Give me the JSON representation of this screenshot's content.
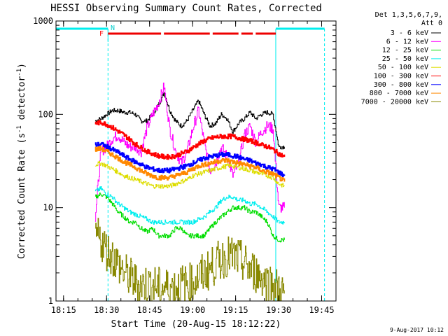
{
  "chart_data": {
    "type": "line",
    "title": "HESSI Observing Summary Count Rates, Corrected",
    "xlabel": "Start Time (20-Aug-15 18:12:22)",
    "ylabel": "Corrected Count Rate (s",
    "ylabel_sup1": "-1",
    "ylabel_mid": " detector",
    "ylabel_sup2": "-1",
    "ylabel_end": ")",
    "yscale": "log",
    "ylim": [
      1,
      1000
    ],
    "y_ticks": [
      1,
      10,
      100,
      1000
    ],
    "y_tick_labels": [
      "1",
      "10",
      "100",
      "1000"
    ],
    "xlim": [
      "18:12:22",
      "19:50:00"
    ],
    "x_ticks": [
      "18:15",
      "18:30",
      "18:45",
      "19:00",
      "19:15",
      "19:30",
      "19:45"
    ],
    "legend": {
      "placement": "right",
      "header": [
        "Det 1,3,5,6,7,9,",
        "Att 0"
      ]
    },
    "series": [
      {
        "name": "3 - 6 keV",
        "color": "#000000",
        "x": [
          "18:26",
          "18:28",
          "18:30",
          "18:32",
          "18:34",
          "18:36",
          "18:38",
          "18:40",
          "18:42",
          "18:44",
          "18:46",
          "18:48",
          "18:50",
          "18:52",
          "18:54",
          "18:56",
          "18:58",
          "19:00",
          "19:02",
          "19:04",
          "19:06",
          "19:08",
          "19:10",
          "19:12",
          "19:14",
          "19:16",
          "19:18",
          "19:20",
          "19:22",
          "19:24",
          "19:26",
          "19:28",
          "19:30",
          "19:32"
        ],
        "y": [
          85,
          90,
          100,
          110,
          110,
          105,
          105,
          100,
          85,
          85,
          100,
          125,
          170,
          110,
          85,
          75,
          85,
          110,
          140,
          100,
          75,
          80,
          100,
          90,
          65,
          80,
          90,
          105,
          90,
          100,
          105,
          100,
          45,
          45
        ]
      },
      {
        "name": "6 - 12 keV",
        "color": "#ff00ff",
        "x": [
          "18:26",
          "18:28",
          "18:30",
          "18:32",
          "18:34",
          "18:36",
          "18:38",
          "18:40",
          "18:42",
          "18:44",
          "18:46",
          "18:48",
          "18:50",
          "18:52",
          "18:54",
          "18:56",
          "18:58",
          "19:00",
          "19:02",
          "19:04",
          "19:06",
          "19:08",
          "19:10",
          "19:12",
          "19:14",
          "19:16",
          "19:18",
          "19:20",
          "19:22",
          "19:24",
          "19:26",
          "19:28",
          "19:30",
          "19:32"
        ],
        "y": [
          8,
          40,
          45,
          55,
          60,
          50,
          45,
          45,
          40,
          70,
          100,
          130,
          200,
          70,
          40,
          30,
          40,
          70,
          110,
          50,
          25,
          30,
          45,
          35,
          22,
          30,
          60,
          75,
          50,
          65,
          75,
          70,
          10,
          10
        ]
      },
      {
        "name": "12 - 25 keV",
        "color": "#00dd00",
        "x": [
          "18:26",
          "18:28",
          "18:30",
          "18:32",
          "18:34",
          "18:36",
          "18:38",
          "18:40",
          "18:42",
          "18:44",
          "18:46",
          "18:48",
          "18:50",
          "18:52",
          "18:54",
          "18:56",
          "18:58",
          "19:00",
          "19:02",
          "19:04",
          "19:06",
          "19:08",
          "19:10",
          "19:12",
          "19:14",
          "19:16",
          "19:18",
          "19:20",
          "19:22",
          "19:24",
          "19:26",
          "19:28",
          "19:30",
          "19:32"
        ],
        "y": [
          13,
          14,
          13,
          11,
          9,
          8,
          7,
          7,
          6,
          5.5,
          6,
          5,
          5,
          5,
          6,
          6,
          5,
          5,
          5,
          5,
          6,
          7,
          8,
          9,
          10,
          10,
          10,
          9,
          9,
          8,
          7,
          5,
          4.5,
          4.5
        ]
      },
      {
        "name": "25 - 50 keV",
        "color": "#00eeee",
        "x": [
          "18:26",
          "18:28",
          "18:30",
          "18:32",
          "18:34",
          "18:36",
          "18:38",
          "18:40",
          "18:42",
          "18:44",
          "18:46",
          "18:48",
          "18:50",
          "18:52",
          "18:54",
          "18:56",
          "18:58",
          "19:00",
          "19:02",
          "19:04",
          "19:06",
          "19:08",
          "19:10",
          "19:12",
          "19:14",
          "19:16",
          "19:18",
          "19:20",
          "19:22",
          "19:24",
          "19:26",
          "19:28",
          "19:30",
          "19:32"
        ],
        "y": [
          15,
          16,
          14,
          13,
          11,
          10,
          9,
          8.5,
          8,
          7.5,
          7,
          7,
          7,
          7,
          7,
          7,
          7,
          7,
          7.5,
          8,
          9,
          10,
          12,
          13,
          13,
          12,
          12,
          11,
          11,
          10,
          9,
          8,
          7,
          7
        ]
      },
      {
        "name": "50 - 100 keV",
        "color": "#dddd00",
        "x": [
          "18:26",
          "18:28",
          "18:30",
          "18:32",
          "18:34",
          "18:36",
          "18:38",
          "18:40",
          "18:42",
          "18:44",
          "18:46",
          "18:48",
          "18:50",
          "18:52",
          "18:54",
          "18:56",
          "18:58",
          "19:00",
          "19:02",
          "19:04",
          "19:06",
          "19:08",
          "19:10",
          "19:12",
          "19:14",
          "19:16",
          "19:18",
          "19:20",
          "19:22",
          "19:24",
          "19:26",
          "19:28",
          "19:30",
          "19:32"
        ],
        "y": [
          29,
          30,
          28,
          26,
          24,
          22,
          21,
          20,
          19,
          18,
          17,
          17,
          17,
          17,
          18,
          19,
          20,
          22,
          23,
          24,
          25,
          26,
          27,
          28,
          28,
          27,
          26,
          25,
          24,
          23,
          22,
          21,
          18,
          17
        ]
      },
      {
        "name": "100 - 300 keV",
        "color": "#ff0000",
        "x": [
          "18:26",
          "18:28",
          "18:30",
          "18:32",
          "18:34",
          "18:36",
          "18:38",
          "18:40",
          "18:42",
          "18:44",
          "18:46",
          "18:48",
          "18:50",
          "18:52",
          "18:54",
          "18:56",
          "18:58",
          "19:00",
          "19:02",
          "19:04",
          "19:06",
          "19:08",
          "19:10",
          "19:12",
          "19:14",
          "19:16",
          "19:18",
          "19:20",
          "19:22",
          "19:24",
          "19:26",
          "19:28",
          "19:30",
          "19:32"
        ],
        "y": [
          80,
          82,
          78,
          72,
          66,
          60,
          54,
          48,
          44,
          40,
          38,
          36,
          35,
          35,
          36,
          38,
          40,
          44,
          48,
          52,
          55,
          57,
          58,
          58,
          58,
          56,
          54,
          52,
          50,
          47,
          45,
          42,
          38,
          35
        ]
      },
      {
        "name": "300 - 800 keV",
        "color": "#0000ff",
        "x": [
          "18:26",
          "18:28",
          "18:30",
          "18:32",
          "18:34",
          "18:36",
          "18:38",
          "18:40",
          "18:42",
          "18:44",
          "18:46",
          "18:48",
          "18:50",
          "18:52",
          "18:54",
          "18:56",
          "18:58",
          "19:00",
          "19:02",
          "19:04",
          "19:06",
          "19:08",
          "19:10",
          "19:12",
          "19:14",
          "19:16",
          "19:18",
          "19:20",
          "19:22",
          "19:24",
          "19:26",
          "19:28",
          "19:30",
          "19:32"
        ],
        "y": [
          47,
          48,
          45,
          42,
          39,
          36,
          33,
          31,
          29,
          27,
          26,
          25,
          25,
          25,
          26,
          27,
          28,
          30,
          32,
          34,
          35,
          36,
          37,
          37,
          36,
          35,
          33,
          32,
          30,
          29,
          27,
          26,
          24,
          22
        ]
      },
      {
        "name": "800 - 7000 keV",
        "color": "#ff8800",
        "x": [
          "18:26",
          "18:28",
          "18:30",
          "18:32",
          "18:34",
          "18:36",
          "18:38",
          "18:40",
          "18:42",
          "18:44",
          "18:46",
          "18:48",
          "18:50",
          "18:52",
          "18:54",
          "18:56",
          "18:58",
          "19:00",
          "19:02",
          "19:04",
          "19:06",
          "19:08",
          "19:10",
          "19:12",
          "19:14",
          "19:16",
          "19:18",
          "19:20",
          "19:22",
          "19:24",
          "19:26",
          "19:28",
          "19:30",
          "19:32"
        ],
        "y": [
          42,
          43,
          40,
          37,
          34,
          31,
          29,
          27,
          25,
          23,
          22,
          21,
          21,
          21,
          22,
          23,
          24,
          26,
          28,
          29,
          30,
          31,
          32,
          32,
          31,
          30,
          29,
          28,
          27,
          25,
          24,
          23,
          21,
          19
        ]
      },
      {
        "name": "7000 - 20000 keV",
        "color": "#888800",
        "x": [
          "18:26",
          "18:28",
          "18:30",
          "18:32",
          "18:34",
          "18:36",
          "18:38",
          "18:40",
          "18:42",
          "18:44",
          "18:46",
          "18:48",
          "18:50",
          "18:52",
          "18:54",
          "18:56",
          "18:58",
          "19:00",
          "19:02",
          "19:04",
          "19:06",
          "19:08",
          "19:10",
          "19:12",
          "19:14",
          "19:16",
          "19:18",
          "19:20",
          "19:22",
          "19:24",
          "19:26",
          "19:28",
          "19:30",
          "19:32"
        ],
        "y": [
          5,
          4.5,
          3.5,
          3,
          2.5,
          2,
          1.8,
          1.6,
          1.5,
          1.5,
          1.5,
          1.4,
          1.4,
          1.4,
          1.4,
          1.5,
          1.5,
          1.6,
          1.8,
          2,
          2.2,
          2.5,
          2.8,
          3,
          3,
          2.8,
          2.5,
          2.2,
          2,
          1.8,
          1.6,
          1.5,
          1.3,
          1.2
        ]
      }
    ],
    "annotations": {
      "flag_F": "F",
      "flag_N": "N",
      "saa_periods": [
        [
          "18:12:22",
          "18:30:30"
        ],
        [
          "19:29:00",
          "19:46:00"
        ]
      ],
      "flare_flag_periods": [
        [
          "18:30:30",
          "18:49:00"
        ],
        [
          "18:50:00",
          "19:06:00"
        ],
        [
          "19:07:00",
          "19:16:00"
        ],
        [
          "19:17:00",
          "19:21:00"
        ],
        [
          "19:22:00",
          "19:29:00"
        ]
      ],
      "night_marks": [
        "18:30:30",
        "19:46:00"
      ]
    },
    "footer_date": "9-Aug-2017 10:12"
  }
}
